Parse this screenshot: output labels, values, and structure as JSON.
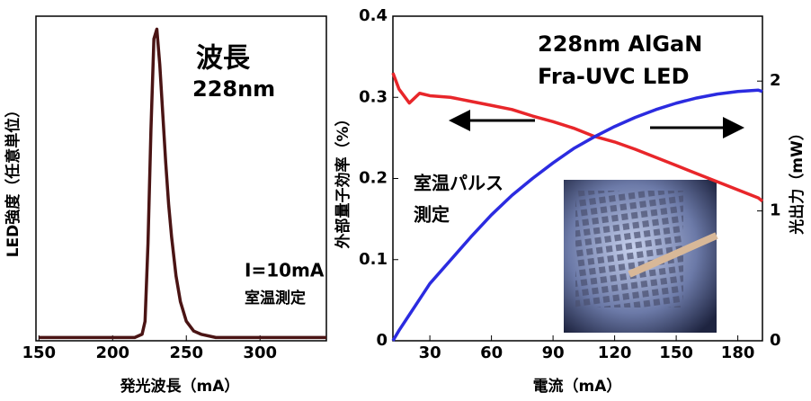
{
  "chart_data": [
    {
      "type": "line",
      "ylabel": "LED強度（任意単位）",
      "xlabel": "発光波長（mA）",
      "annotations": [
        "波長",
        "228nm",
        "I=10mA",
        "室温測定"
      ],
      "x": [
        150,
        200,
        215,
        220,
        222,
        224,
        226,
        228,
        230,
        232,
        234,
        236,
        238,
        240,
        243,
        246,
        250,
        255,
        260,
        270,
        300,
        345
      ],
      "series": [
        {
          "color": "#4a1414",
          "values": [
            0.01,
            0.01,
            0.01,
            0.02,
            0.06,
            0.3,
            0.65,
            0.93,
            0.96,
            0.85,
            0.7,
            0.55,
            0.42,
            0.32,
            0.2,
            0.12,
            0.06,
            0.03,
            0.02,
            0.01,
            0.01,
            0.01
          ]
        }
      ],
      "xlim": [
        148,
        345
      ],
      "xticks": [
        150,
        200,
        250,
        300
      ],
      "ylim": [
        0,
        1
      ]
    },
    {
      "type": "line",
      "xlabel": "電流（mA）",
      "ylabel": "外部量子効率（%）",
      "y2label": "光出力（mW）",
      "annotations": [
        "228nm AlGaN",
        "Fra-UVC LED",
        "室温パルス",
        "測定"
      ],
      "x": [
        12,
        15,
        20,
        25,
        30,
        40,
        50,
        60,
        70,
        80,
        90,
        100,
        110,
        120,
        130,
        140,
        150,
        160,
        170,
        180,
        190,
        192
      ],
      "series": [
        {
          "color": "#e8262a",
          "values": [
            0.33,
            0.31,
            0.293,
            0.305,
            0.302,
            0.3,
            0.295,
            0.29,
            0.285,
            0.277,
            0.27,
            0.262,
            0.252,
            0.245,
            0.236,
            0.226,
            0.216,
            0.206,
            0.196,
            0.186,
            0.176,
            0.172
          ]
        },
        {
          "color": "#2b2be0",
          "axis": "y2",
          "values": [
            0,
            0.08,
            0.2,
            0.32,
            0.44,
            0.62,
            0.8,
            0.97,
            1.12,
            1.25,
            1.37,
            1.48,
            1.57,
            1.65,
            1.72,
            1.78,
            1.83,
            1.87,
            1.9,
            1.92,
            1.93,
            1.92
          ]
        }
      ],
      "xlim": [
        12,
        192
      ],
      "xticks": [
        30,
        60,
        90,
        120,
        150,
        180
      ],
      "ylim": [
        0,
        0.4
      ],
      "yticks": [
        0,
        0.1,
        0.2,
        0.3,
        0.4
      ],
      "y2lim": [
        0,
        2.5
      ],
      "y2ticks": [
        0,
        1,
        2
      ]
    }
  ]
}
